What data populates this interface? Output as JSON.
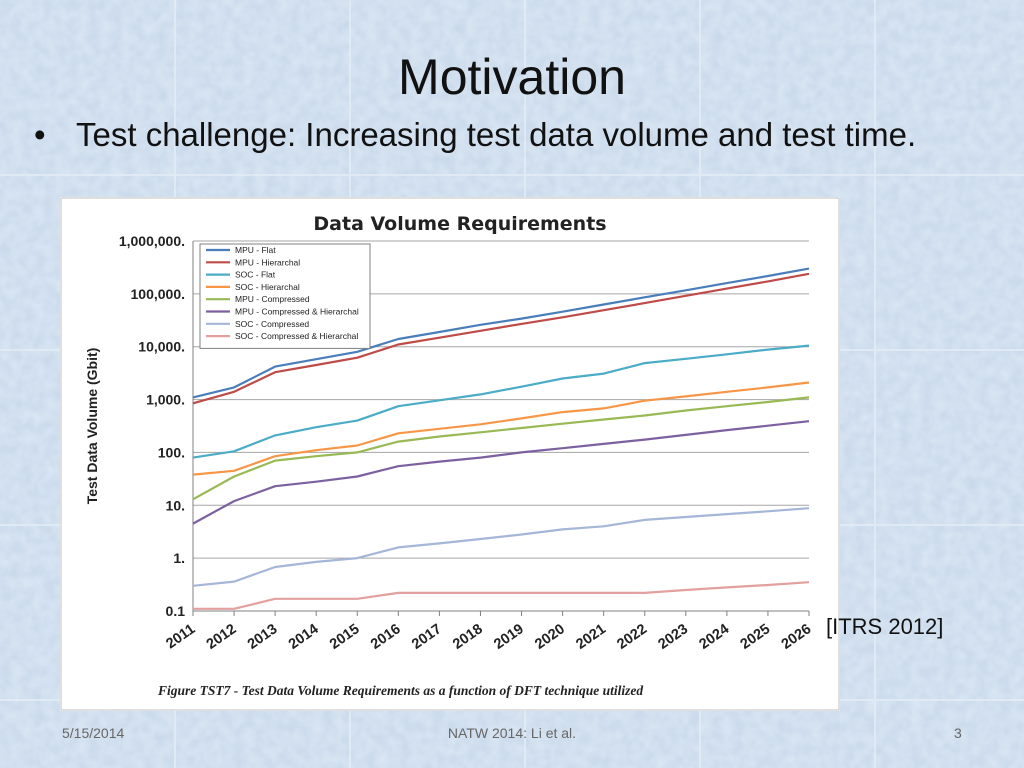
{
  "slide": {
    "title": "Motivation",
    "bullet": "Test challenge: Increasing test data volume and test time.",
    "citation": "[ITRS 2012]",
    "footer_date": "5/15/2014",
    "footer_center": "NATW 2014: Li et al.",
    "page_number": "3"
  },
  "chart_data": {
    "type": "line",
    "title": "Data Volume Requirements",
    "xlabel": "",
    "ylabel": "Test Data Volume (Gbit)",
    "caption": "Figure TST7 - Test Data Volume Requirements as a function of DFT technique utilized",
    "y_scale": "log",
    "ylim": [
      0.1,
      1000000
    ],
    "yticks": [
      0.1,
      1,
      10,
      100,
      1000,
      10000,
      100000,
      1000000
    ],
    "ytick_labels": [
      "0.1",
      "1.",
      "10.",
      "100.",
      "1,000.",
      "10,000.",
      "100,000.",
      "1,000,000."
    ],
    "grid": true,
    "legend_position": "top-left",
    "x": [
      "2011",
      "2012",
      "2013",
      "2014",
      "2015",
      "2016",
      "2017",
      "2018",
      "2019",
      "2020",
      "2021",
      "2022",
      "2023",
      "2024",
      "2025",
      "2026"
    ],
    "series": [
      {
        "name": "MPU - Flat",
        "color": "#4a7ebb",
        "values": [
          1100,
          1700,
          4200,
          5800,
          8000,
          14000,
          19000,
          26000,
          34000,
          46000,
          63000,
          86000,
          117000,
          160000,
          218000,
          300000
        ]
      },
      {
        "name": "MPU - Hierarchal",
        "color": "#be4b48",
        "values": [
          850,
          1400,
          3300,
          4500,
          6200,
          11000,
          14800,
          20000,
          27000,
          36000,
          49000,
          67000,
          92000,
          126000,
          172000,
          240000
        ]
      },
      {
        "name": "SOC - Flat",
        "color": "#4aacc6",
        "values": [
          80,
          105,
          210,
          300,
          400,
          750,
          970,
          1250,
          1750,
          2500,
          3100,
          4900,
          5900,
          7200,
          8800,
          10500
        ]
      },
      {
        "name": "SOC - Hierarchal",
        "color": "#f79646",
        "values": [
          38,
          45,
          85,
          110,
          135,
          230,
          280,
          340,
          440,
          580,
          680,
          950,
          1150,
          1400,
          1700,
          2100
        ]
      },
      {
        "name": "MPU - Compressed",
        "color": "#98b954",
        "values": [
          13,
          35,
          70,
          85,
          100,
          160,
          200,
          240,
          290,
          350,
          420,
          500,
          620,
          750,
          900,
          1100
        ]
      },
      {
        "name": "MPU - Compressed & Hierarchal",
        "color": "#7d60a0",
        "values": [
          4.5,
          12,
          23,
          28,
          35,
          55,
          67,
          80,
          100,
          120,
          145,
          175,
          215,
          265,
          320,
          390
        ]
      },
      {
        "name": "SOC - Compressed",
        "color": "#a5b6d8",
        "values": [
          0.3,
          0.36,
          0.68,
          0.85,
          1.0,
          1.6,
          1.9,
          2.3,
          2.8,
          3.5,
          4.0,
          5.3,
          6.0,
          6.8,
          7.7,
          8.8
        ]
      },
      {
        "name": "SOC - Compressed & Hierarchal",
        "color": "#e2a09e",
        "values": [
          0.11,
          0.11,
          0.17,
          0.17,
          0.17,
          0.22,
          0.22,
          0.22,
          0.22,
          0.22,
          0.22,
          0.22,
          0.25,
          0.28,
          0.31,
          0.35
        ]
      }
    ]
  }
}
